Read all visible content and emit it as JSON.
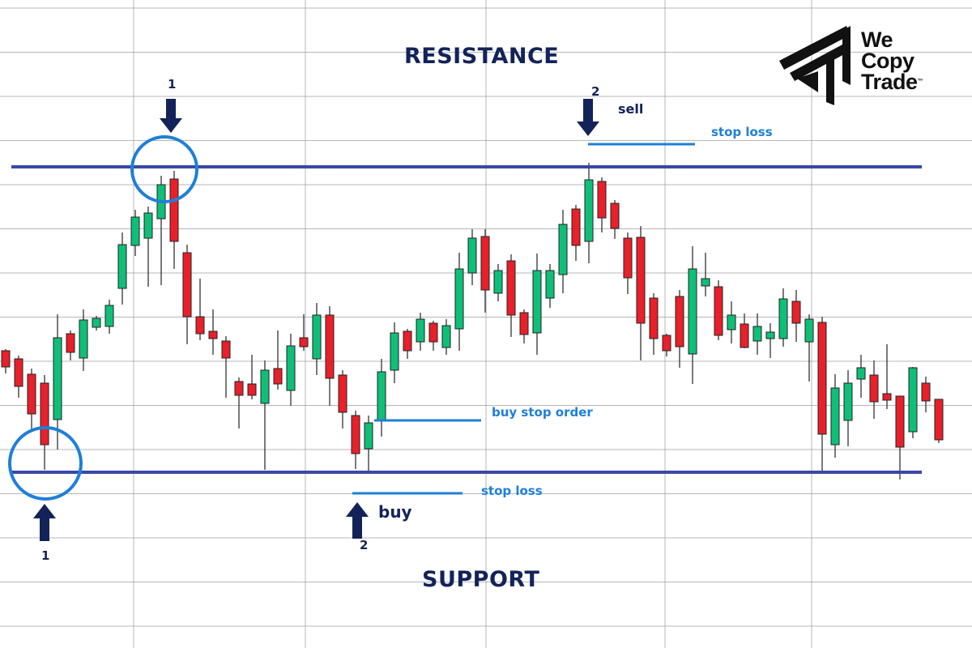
{
  "chart_data": {
    "type": "candlestick",
    "title": "",
    "xlabel": "",
    "ylabel": "",
    "grid": true,
    "candle_fields": [
      "open",
      "high",
      "low",
      "close"
    ],
    "candles": [
      [
        367,
        369,
        339,
        347
      ],
      [
        357,
        361,
        309,
        323
      ],
      [
        338,
        345,
        268,
        289
      ],
      [
        327,
        337,
        220,
        251
      ],
      [
        282,
        412,
        245,
        383
      ],
      [
        388,
        392,
        355,
        365
      ],
      [
        358,
        418,
        342,
        405
      ],
      [
        396,
        410,
        392,
        407
      ],
      [
        397,
        430,
        388,
        423
      ],
      [
        444,
        513,
        424,
        498
      ],
      [
        497,
        541,
        484,
        532
      ],
      [
        506,
        545,
        446,
        537
      ],
      [
        530,
        583,
        448,
        572
      ],
      [
        579,
        589,
        468,
        502
      ],
      [
        488,
        498,
        375,
        409
      ],
      [
        409,
        456,
        380,
        388
      ],
      [
        391,
        418,
        362,
        382
      ],
      [
        379,
        385,
        309,
        358
      ],
      [
        329,
        334,
        271,
        312
      ],
      [
        326,
        362,
        307,
        312
      ],
      [
        302,
        355,
        220,
        343
      ],
      [
        345,
        392,
        319,
        326
      ],
      [
        318,
        388,
        299,
        373
      ],
      [
        383,
        412,
        367,
        372
      ],
      [
        357,
        426,
        337,
        411
      ],
      [
        411,
        422,
        299,
        333
      ],
      [
        337,
        343,
        271,
        291
      ],
      [
        287,
        293,
        221,
        240
      ],
      [
        246,
        287,
        219,
        278
      ],
      [
        282,
        357,
        261,
        341
      ],
      [
        343,
        402,
        327,
        389
      ],
      [
        391,
        394,
        357,
        367
      ],
      [
        378,
        414,
        367,
        406
      ],
      [
        401,
        404,
        367,
        378
      ],
      [
        371,
        406,
        362,
        398
      ],
      [
        394,
        488,
        367,
        468
      ],
      [
        463,
        517,
        448,
        506
      ],
      [
        508,
        517,
        414,
        442
      ],
      [
        438,
        474,
        428,
        466
      ],
      [
        478,
        486,
        384,
        411
      ],
      [
        414,
        418,
        376,
        387
      ],
      [
        389,
        487,
        362,
        466
      ],
      [
        432,
        474,
        420,
        466
      ],
      [
        461,
        541,
        438,
        523
      ],
      [
        542,
        547,
        478,
        497
      ],
      [
        502,
        599,
        475,
        578
      ],
      [
        576,
        581,
        513,
        531
      ],
      [
        549,
        553,
        505,
        518
      ],
      [
        506,
        513,
        437,
        457
      ],
      [
        507,
        521,
        355,
        401
      ],
      [
        432,
        438,
        362,
        382
      ],
      [
        386,
        388,
        360,
        367
      ],
      [
        434,
        442,
        346,
        372
      ],
      [
        363,
        496,
        326,
        468
      ],
      [
        447,
        488,
        434,
        456
      ],
      [
        446,
        454,
        380,
        386
      ],
      [
        393,
        428,
        376,
        411
      ],
      [
        400,
        413,
        370,
        371
      ],
      [
        379,
        413,
        362,
        397
      ],
      [
        382,
        401,
        358,
        390
      ],
      [
        382,
        444,
        372,
        431
      ],
      [
        428,
        442,
        378,
        401
      ],
      [
        378,
        412,
        329,
        406
      ],
      [
        402,
        409,
        219,
        264
      ],
      [
        251,
        338,
        235,
        321
      ],
      [
        281,
        343,
        249,
        327
      ],
      [
        332,
        362,
        309,
        346
      ],
      [
        337,
        355,
        283,
        304
      ],
      [
        314,
        375,
        295,
        306
      ],
      [
        311,
        311,
        208,
        248
      ],
      [
        267,
        347,
        259,
        346
      ],
      [
        327,
        335,
        291,
        305
      ],
      [
        307,
        307,
        253,
        257
      ]
    ],
    "levels": {
      "resistance": 594,
      "support": 217,
      "sell_stop_loss": 622,
      "buy_stop_order": 281,
      "buy_stop_loss": 191
    },
    "annotations": {
      "resistance_label": "RESISTANCE",
      "support_label": "SUPPORT",
      "top_touch_number": "1",
      "bottom_touch_number": "1",
      "sell_number": "2",
      "buy_number": "2",
      "sell_label": "sell",
      "sell_stop_loss_label": "stop loss",
      "buy_stop_order_label": "buy stop order",
      "buy_label": "buy",
      "buy_stop_loss_label": "stop loss"
    }
  },
  "logo": {
    "line1": "We",
    "line2": "Copy",
    "line3": "Trade",
    "tm": "™"
  },
  "colors": {
    "bull": "#0fbf78",
    "bear": "#e8202a",
    "level_line": "#3a48a6",
    "accent": "#1e7fd8",
    "navy": "#13235a",
    "grid": "#9a9a9a"
  }
}
